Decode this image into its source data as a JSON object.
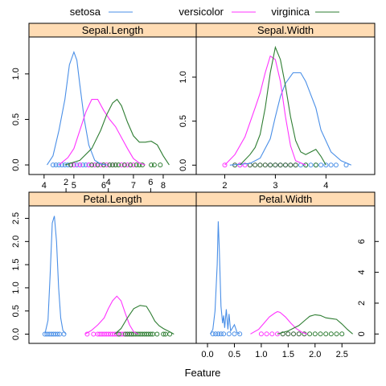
{
  "colors": {
    "setosa": "#4a8fe7",
    "versicolor": "#ff33ff",
    "virginica": "#2e7d32",
    "strip": "#ffdcb4"
  },
  "chart_data": {
    "type": "line",
    "subtype": "density-with-rug",
    "xlabel": "Feature",
    "legend": {
      "placement": "top",
      "entries": [
        "setosa",
        "versicolor",
        "virginica"
      ]
    },
    "panels": [
      {
        "name": "Sepal.Length",
        "xlim": [
          3.6,
          9.0
        ],
        "ylim": [
          -0.07,
          1.37
        ],
        "xticks": [
          4,
          5,
          6,
          7,
          8
        ],
        "yticks": [
          0.0,
          0.5,
          1.0
        ],
        "tick_side": {
          "x": "bottom",
          "y": "left"
        },
        "series": [
          {
            "name": "setosa",
            "x": [
              4.1,
              4.3,
              4.5,
              4.7,
              4.85,
              5.0,
              5.1,
              5.2,
              5.35,
              5.5,
              5.7,
              5.9,
              6.1
            ],
            "y": [
              0.0,
              0.1,
              0.38,
              0.72,
              1.1,
              1.24,
              1.15,
              0.88,
              0.5,
              0.22,
              0.05,
              0.01,
              0.0
            ]
          },
          {
            "name": "versicolor",
            "x": [
              4.5,
              4.8,
              5.0,
              5.2,
              5.4,
              5.6,
              5.8,
              6.0,
              6.2,
              6.4,
              6.6,
              6.8,
              7.0,
              7.2,
              7.4
            ],
            "y": [
              0.0,
              0.08,
              0.18,
              0.38,
              0.58,
              0.72,
              0.72,
              0.6,
              0.5,
              0.42,
              0.3,
              0.18,
              0.07,
              0.02,
              0.0
            ]
          },
          {
            "name": "virginica",
            "x": [
              4.7,
              5.2,
              5.6,
              5.9,
              6.1,
              6.3,
              6.45,
              6.6,
              6.8,
              7.0,
              7.2,
              7.4,
              7.6,
              7.8,
              8.0,
              8.2
            ],
            "y": [
              0.0,
              0.05,
              0.18,
              0.38,
              0.55,
              0.68,
              0.72,
              0.65,
              0.47,
              0.32,
              0.25,
              0.25,
              0.26,
              0.22,
              0.1,
              0.0
            ]
          }
        ],
        "rug": {
          "setosa": [
            4.3,
            4.4,
            4.5,
            4.6,
            4.7,
            4.8,
            4.9,
            5.0,
            5.1,
            5.2,
            5.3,
            5.4,
            5.5,
            5.7,
            5.8
          ],
          "versicolor": [
            4.9,
            5.0,
            5.2,
            5.5,
            5.6,
            5.7,
            5.8,
            5.9,
            6.0,
            6.1,
            6.2,
            6.3,
            6.4,
            6.6,
            6.7,
            6.8,
            6.9,
            7.0
          ],
          "virginica": [
            4.9,
            5.6,
            5.8,
            6.0,
            6.2,
            6.3,
            6.4,
            6.5,
            6.7,
            6.9,
            7.1,
            7.2,
            7.3,
            7.6,
            7.7,
            7.9
          ]
        }
      },
      {
        "name": "Sepal.Width",
        "xlim": [
          1.5,
          4.9
        ],
        "ylim": [
          -0.07,
          1.42
        ],
        "xticks": [
          2,
          3,
          4
        ],
        "yticks": [
          0.0,
          0.5,
          1.0
        ],
        "tick_side": {
          "x": "bottom",
          "y": "left"
        },
        "series": [
          {
            "name": "setosa",
            "x": [
              2.1,
              2.5,
              2.7,
              2.9,
              3.0,
              3.1,
              3.2,
              3.35,
              3.5,
              3.6,
              3.7,
              3.8,
              3.9,
              4.1,
              4.3,
              4.5
            ],
            "y": [
              0.0,
              0.02,
              0.08,
              0.3,
              0.55,
              0.78,
              0.93,
              1.05,
              1.05,
              0.95,
              0.8,
              0.65,
              0.4,
              0.15,
              0.05,
              0.0
            ]
          },
          {
            "name": "versicolor",
            "x": [
              2.0,
              2.2,
              2.4,
              2.6,
              2.7,
              2.8,
              2.9,
              3.0,
              3.1,
              3.2,
              3.3,
              3.4,
              3.6
            ],
            "y": [
              0.0,
              0.12,
              0.32,
              0.65,
              0.82,
              1.05,
              1.24,
              1.2,
              0.95,
              0.55,
              0.22,
              0.05,
              0.0
            ]
          },
          {
            "name": "virginica",
            "x": [
              2.3,
              2.5,
              2.6,
              2.7,
              2.8,
              2.9,
              3.0,
              3.1,
              3.2,
              3.3,
              3.4,
              3.5,
              3.6,
              3.8,
              3.9,
              4.0
            ],
            "y": [
              0.0,
              0.12,
              0.2,
              0.35,
              0.65,
              1.05,
              1.34,
              1.2,
              0.9,
              0.55,
              0.28,
              0.15,
              0.12,
              0.18,
              0.1,
              0.0
            ]
          }
        ],
        "rug": {
          "setosa": [
            2.3,
            2.9,
            3.0,
            3.1,
            3.2,
            3.3,
            3.4,
            3.5,
            3.6,
            3.7,
            3.8,
            3.9,
            4.0,
            4.1,
            4.2,
            4.4
          ],
          "versicolor": [
            2.0,
            2.2,
            2.3,
            2.4,
            2.5,
            2.6,
            2.7,
            2.8,
            2.9,
            3.0,
            3.1,
            3.2,
            3.3,
            3.4
          ],
          "virginica": [
            2.2,
            2.5,
            2.6,
            2.7,
            2.8,
            2.9,
            3.0,
            3.1,
            3.2,
            3.3,
            3.4,
            3.6,
            3.8
          ]
        }
      },
      {
        "name": "Petal.Length",
        "xlim": [
          0.4,
          8.0
        ],
        "ylim": [
          -0.13,
          2.7
        ],
        "xticks": [
          2,
          4,
          6
        ],
        "yticks": [
          0.0,
          0.5,
          1.0,
          1.5,
          2.0,
          2.5
        ],
        "tick_side": {
          "x": "top",
          "y": "left"
        },
        "series": [
          {
            "name": "setosa",
            "x": [
              1.0,
              1.15,
              1.25,
              1.35,
              1.45,
              1.55,
              1.65,
              1.75,
              1.85,
              2.0
            ],
            "y": [
              0.0,
              0.3,
              1.3,
              2.4,
              2.55,
              2.0,
              1.0,
              0.35,
              0.08,
              0.0
            ]
          },
          {
            "name": "versicolor",
            "x": [
              2.9,
              3.2,
              3.5,
              3.8,
              4.0,
              4.2,
              4.4,
              4.6,
              4.8,
              5.0,
              5.2,
              5.4
            ],
            "y": [
              0.0,
              0.08,
              0.2,
              0.35,
              0.55,
              0.72,
              0.82,
              0.72,
              0.45,
              0.2,
              0.05,
              0.0
            ]
          },
          {
            "name": "virginica",
            "x": [
              4.3,
              4.6,
              4.9,
              5.2,
              5.5,
              5.8,
              6.0,
              6.2,
              6.4,
              6.6,
              6.9,
              7.1
            ],
            "y": [
              0.0,
              0.12,
              0.35,
              0.55,
              0.62,
              0.6,
              0.45,
              0.28,
              0.18,
              0.12,
              0.05,
              0.0
            ]
          }
        ],
        "rug": {
          "setosa": [
            1.0,
            1.1,
            1.2,
            1.3,
            1.4,
            1.5,
            1.6,
            1.7,
            1.9
          ],
          "versicolor": [
            3.0,
            3.3,
            3.5,
            3.6,
            3.7,
            3.8,
            3.9,
            4.0,
            4.1,
            4.2,
            4.3,
            4.4,
            4.5,
            4.6,
            4.7,
            4.8,
            4.9,
            5.0,
            5.1
          ],
          "virginica": [
            4.5,
            4.8,
            4.9,
            5.0,
            5.1,
            5.2,
            5.3,
            5.4,
            5.5,
            5.6,
            5.7,
            5.8,
            5.9,
            6.0,
            6.1,
            6.3,
            6.6,
            6.7,
            6.9
          ]
        }
      },
      {
        "name": "Petal.Width",
        "xlim": [
          -0.15,
          3.05
        ],
        "ylim": [
          -0.4,
          8.1
        ],
        "xticks": [
          0.0,
          0.5,
          1.0,
          1.5,
          2.0,
          2.5
        ],
        "yticks": [
          0,
          2,
          4,
          6
        ],
        "tick_side": {
          "x": "bottom",
          "y": "right"
        },
        "series": [
          {
            "name": "setosa",
            "x": [
              0.05,
              0.1,
              0.14,
              0.18,
              0.2,
              0.22,
              0.25,
              0.28,
              0.3,
              0.32,
              0.35,
              0.38,
              0.4,
              0.43,
              0.5,
              0.55,
              0.6
            ],
            "y": [
              0.0,
              0.3,
              1.5,
              4.5,
              7.3,
              5.5,
              1.8,
              0.7,
              1.2,
              0.4,
              1.6,
              0.3,
              1.3,
              0.2,
              0.6,
              0.1,
              0.0
            ]
          },
          {
            "name": "versicolor",
            "x": [
              0.8,
              0.95,
              1.05,
              1.15,
              1.25,
              1.3,
              1.35,
              1.45,
              1.55,
              1.65,
              1.75,
              1.85
            ],
            "y": [
              0.0,
              0.3,
              0.7,
              1.1,
              1.35,
              1.45,
              1.4,
              1.1,
              0.7,
              0.35,
              0.12,
              0.0
            ]
          },
          {
            "name": "virginica",
            "x": [
              1.3,
              1.5,
              1.7,
              1.8,
              1.9,
              2.0,
              2.1,
              2.2,
              2.3,
              2.4,
              2.5,
              2.6,
              2.7
            ],
            "y": [
              0.0,
              0.2,
              0.55,
              0.85,
              1.15,
              1.25,
              1.2,
              1.05,
              1.0,
              0.95,
              0.65,
              0.3,
              0.0
            ]
          }
        ],
        "rug": {
          "setosa": [
            0.1,
            0.15,
            0.2,
            0.25,
            0.3,
            0.4,
            0.5,
            0.6
          ],
          "versicolor": [
            1.0,
            1.1,
            1.2,
            1.3,
            1.4,
            1.5,
            1.6,
            1.7,
            1.8
          ],
          "virginica": [
            1.4,
            1.5,
            1.6,
            1.7,
            1.8,
            1.9,
            2.0,
            2.1,
            2.2,
            2.3,
            2.4,
            2.5
          ]
        }
      }
    ]
  }
}
